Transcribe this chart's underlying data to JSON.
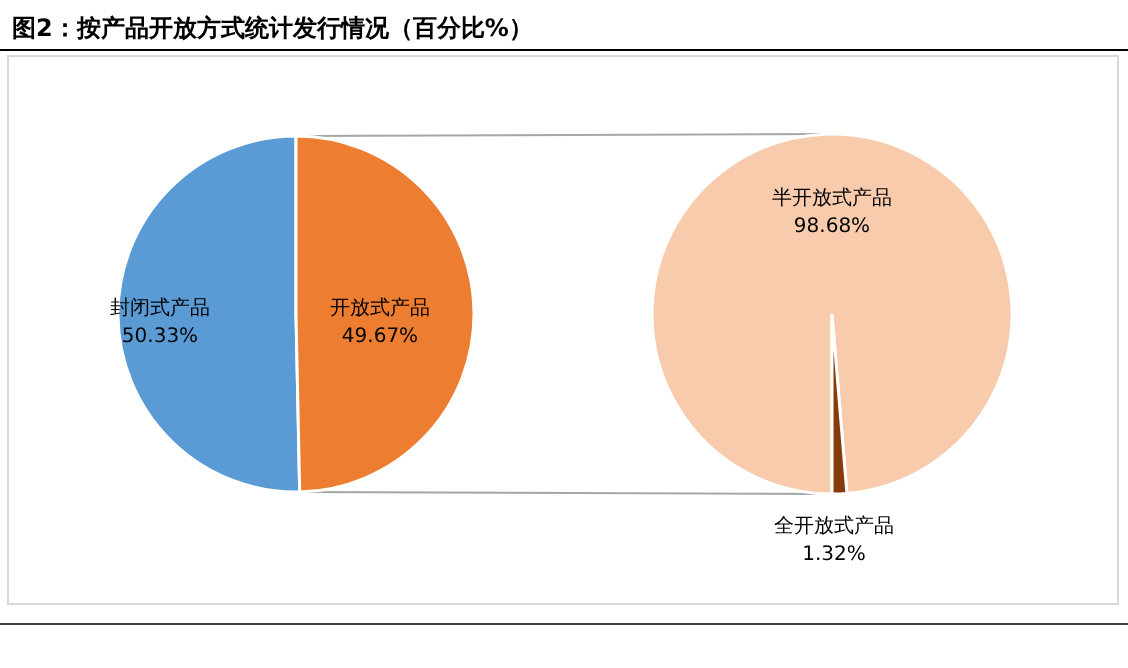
{
  "chart_data": [
    {
      "type": "pie",
      "title": "图2：按产品开放方式统计发行情况（百分比%）",
      "categories": [
        "封闭式产品",
        "开放式产品"
      ],
      "values": [
        50.33,
        49.67
      ],
      "colors": [
        "#5b9bd5",
        "#ed7d31"
      ],
      "value_labels": [
        "50.33%",
        "49.67%"
      ]
    },
    {
      "type": "pie",
      "categories": [
        "半开放式产品",
        "全开放式产品"
      ],
      "values": [
        98.68,
        1.32
      ],
      "colors": [
        "#f8cbad",
        "#843c0c"
      ],
      "value_labels": [
        "98.68%",
        "1.32%"
      ]
    }
  ]
}
